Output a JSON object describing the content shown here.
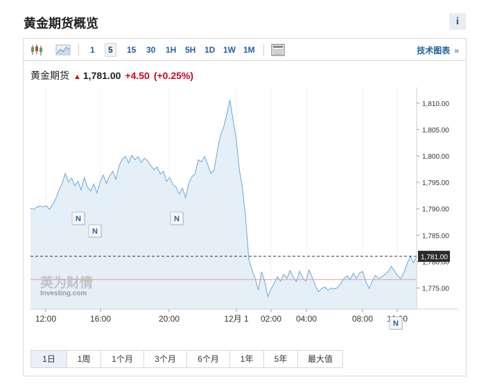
{
  "page_title": "黄金期货概览",
  "info_label": "i",
  "toolbar": {
    "intervals": [
      "1",
      "5",
      "15",
      "30",
      "1H",
      "5H",
      "1D",
      "1W",
      "1M"
    ],
    "active_interval": "5",
    "advanced_link": "技术图表",
    "advanced_chevron": "»"
  },
  "quote": {
    "name": "黄金期货",
    "price": "1,781.00",
    "change": "+4.50",
    "change_pct": "(+0.25%)"
  },
  "watermark": {
    "brand_cn": "英为财情",
    "brand_en": "Investing",
    "brand_suffix": ".com"
  },
  "range_buttons": [
    "1日",
    "1周",
    "1个月",
    "3个月",
    "6个月",
    "1年",
    "5年",
    "最大值"
  ],
  "active_range": "1日",
  "colors": {
    "line": "#6aa6d6",
    "fill": "#e4eff8",
    "up": "#d0021b",
    "link": "#1f5f9f",
    "red_line": "#e8a1a1"
  },
  "chart_data": {
    "type": "area",
    "x_ticks": [
      "12:00",
      "16:00",
      "20:00",
      "12月 1",
      "02:00",
      "04:00",
      "08:00",
      "10:00"
    ],
    "y_ticks": [
      "1,810.00",
      "1,805.00",
      "1,800.00",
      "1,795.00",
      "1,790.00",
      "1,785.00",
      "1,780.00",
      "1,775.00"
    ],
    "ylim": [
      1771,
      1813
    ],
    "last_price_label": "1,781.00",
    "last_price": 1781.0,
    "prev_close": 1776.6,
    "news_markers": [
      "N",
      "N",
      "N",
      "N"
    ],
    "values": [
      1790.1,
      1789.9,
      1790.3,
      1790.5,
      1790.4,
      1790.6,
      1789.9,
      1790.8,
      1791.9,
      1793.6,
      1794.8,
      1796.7,
      1795.1,
      1795.8,
      1794.4,
      1795.2,
      1793.6,
      1795.9,
      1794.1,
      1793.4,
      1794.7,
      1793.0,
      1795.1,
      1796.4,
      1794.8,
      1796.2,
      1797.1,
      1795.6,
      1798.2,
      1799.4,
      1799.9,
      1798.7,
      1800.1,
      1799.3,
      1799.9,
      1798.8,
      1799.6,
      1799.1,
      1798.2,
      1797.4,
      1797.9,
      1796.6,
      1797.1,
      1795.2,
      1795.9,
      1794.6,
      1794.1,
      1792.8,
      1793.9,
      1792.1,
      1794.8,
      1796.1,
      1796.6,
      1799.3,
      1798.9,
      1799.9,
      1798.4,
      1796.7,
      1797.3,
      1800.9,
      1803.8,
      1805.4,
      1807.8,
      1810.6,
      1806.9,
      1803.2,
      1797.4,
      1793.8,
      1788.1,
      1780.4,
      1778.4,
      1776.8,
      1774.6,
      1778.1,
      1776.3,
      1773.4,
      1774.8,
      1775.9,
      1777.1,
      1776.3,
      1777.6,
      1776.8,
      1778.3,
      1777.1,
      1776.2,
      1778.2,
      1777.0,
      1776.3,
      1778.4,
      1777.1,
      1775.4,
      1774.3,
      1774.9,
      1775.2,
      1774.6,
      1775.0,
      1774.8,
      1775.1,
      1775.8,
      1776.8,
      1777.3,
      1776.6,
      1777.8,
      1776.8,
      1777.9,
      1778.1,
      1776.2,
      1774.9,
      1776.3,
      1777.4,
      1776.8,
      1777.1,
      1777.6,
      1778.1,
      1779.1,
      1778.3,
      1777.3,
      1776.8,
      1777.9,
      1779.6,
      1781.0,
      1779.8,
      1781.0
    ]
  }
}
